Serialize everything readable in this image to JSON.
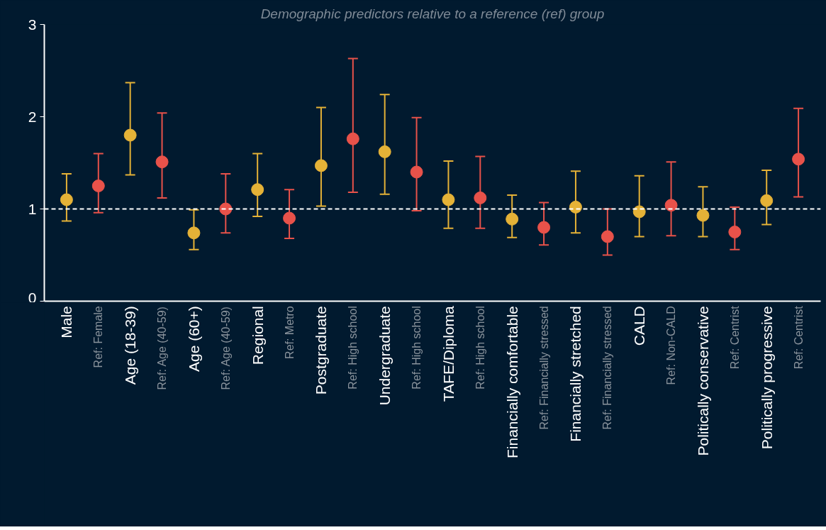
{
  "chart_data": {
    "type": "scatter",
    "title": "Demographic predictors relative to a reference (ref) group",
    "categories": [
      "Male",
      "Ref: Female",
      "Age (18-39)",
      "Ref: Age (40-59)",
      "Age (60+)",
      "Ref: Age (40-59)",
      "Regional",
      "Ref: Metro",
      "Postgraduate",
      "Ref: High school",
      "Undergraduate",
      "Ref: High school",
      "TAFE/Diploma",
      "Ref: High school",
      "Financially comfortable",
      "Ref: Financially stressed",
      "Financially stretched",
      "Ref: Financially stressed",
      "CALD",
      "Ref: Non-CALD",
      "Politically conservative",
      "Ref: Centrist",
      "Politically progressive",
      "Ref: Centrist"
    ],
    "series": [
      {
        "color": "#e5b237",
        "values": [
          1.1,
          null,
          1.8,
          null,
          0.74,
          null,
          1.21,
          null,
          1.47,
          null,
          1.62,
          null,
          1.1,
          null,
          0.89,
          null,
          1.02,
          null,
          0.97,
          null,
          0.93,
          null,
          1.09,
          null
        ],
        "errors": [
          [
            0.87,
            1.38
          ],
          null,
          [
            1.37,
            2.37
          ],
          null,
          [
            0.56,
            0.99
          ],
          null,
          [
            0.92,
            1.6
          ],
          null,
          [
            1.03,
            2.1
          ],
          null,
          [
            1.16,
            2.24
          ],
          null,
          [
            0.79,
            1.52
          ],
          null,
          [
            0.69,
            1.15
          ],
          null,
          [
            0.74,
            1.41
          ],
          null,
          [
            0.7,
            1.36
          ],
          null,
          [
            0.7,
            1.24
          ],
          null,
          [
            0.83,
            1.42
          ],
          null
        ]
      },
      {
        "color": "#e8524a",
        "values": [
          null,
          1.25,
          null,
          1.51,
          null,
          1.0,
          null,
          0.9,
          null,
          1.76,
          null,
          1.4,
          null,
          1.12,
          null,
          0.8,
          null,
          0.7,
          null,
          1.04,
          null,
          0.75,
          null,
          1.54
        ],
        "errors": [
          null,
          [
            0.96,
            1.6
          ],
          null,
          [
            1.12,
            2.04
          ],
          null,
          [
            0.74,
            1.38
          ],
          null,
          [
            0.68,
            1.21
          ],
          null,
          [
            1.18,
            2.63
          ],
          null,
          [
            0.98,
            1.99
          ],
          null,
          [
            0.79,
            1.57
          ],
          null,
          [
            0.61,
            1.07
          ],
          null,
          [
            0.5,
            1.0
          ],
          null,
          [
            0.71,
            1.51
          ],
          null,
          [
            0.56,
            1.02
          ],
          null,
          [
            1.13,
            2.09
          ]
        ]
      }
    ],
    "ylim": [
      0,
      3
    ],
    "yticks": [
      0,
      1,
      2,
      3
    ],
    "grid": false,
    "marker": "circle",
    "ref_lines": [
      {
        "axis": "y",
        "value": 1,
        "color": "#ffffff",
        "line_style": "dashed"
      }
    ]
  }
}
